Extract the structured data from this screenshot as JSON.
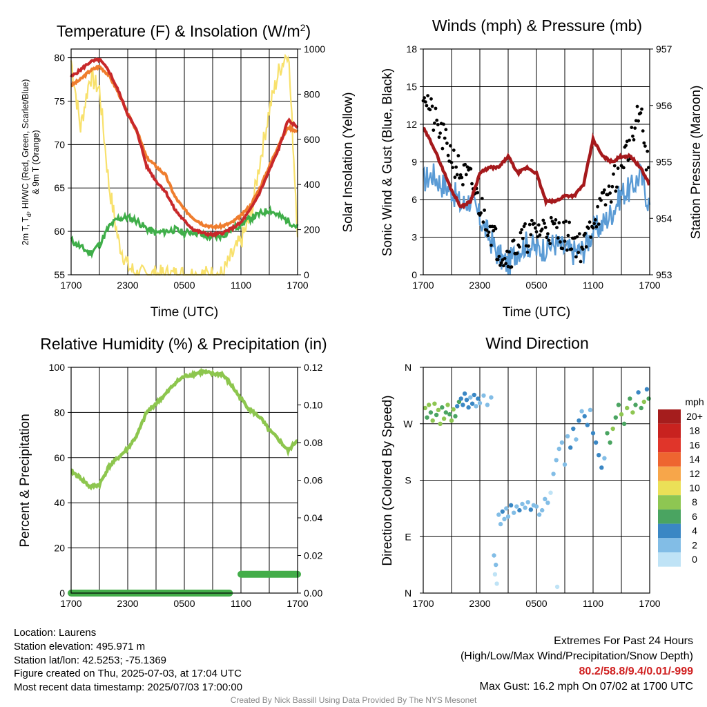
{
  "panels": {
    "temperature": {
      "title_main": "Temperature (F) & Insolation (W/m",
      "title_sup": "2",
      "title_end": ")",
      "ylabel_left": "2m T, T",
      "ylabel_left_sub": "d",
      "ylabel_left_rest": ", HI/WC (Red, Green, Scarlet/Blue)",
      "ylabel_left_line2": "& 9m T (Orange)",
      "ylabel_right": "Solar Insolation (Yellow)",
      "xlabel": "Time (UTC)"
    },
    "winds": {
      "title": "Winds (mph) & Pressure (mb)",
      "ylabel_left": "Sonic Wind & Gust (Blue, Black)",
      "ylabel_right": "Station Pressure (Maroon)",
      "xlabel": "Time (UTC)"
    },
    "humidity": {
      "title": "Relative Humidity (%) & Precipitation (in)",
      "ylabel_left": "Percent & Precipitation"
    },
    "direction": {
      "title": "Wind Direction",
      "ylabel_left": "Direction (Colored By Speed)",
      "legend_unit": "mph",
      "legend_labels": [
        "20+",
        "18",
        "16",
        "14",
        "12",
        "10",
        "8",
        "6",
        "4",
        "2",
        "0"
      ],
      "legend_colors": [
        "#a51d1d",
        "#c8221f",
        "#e0352a",
        "#ee6530",
        "#f7a64a",
        "#ebe057",
        "#8ec652",
        "#4aa461",
        "#3a87c4",
        "#82bde6",
        "#bfe3f6"
      ]
    }
  },
  "chart_data": [
    {
      "type": "line",
      "title": "Temperature (F) & Insolation (W/m2)",
      "xlabel": "Time (UTC)",
      "x_ticks": [
        "1700",
        "2300",
        "0500",
        "1100",
        "1700"
      ],
      "ylim": [
        55,
        81
      ],
      "y_ticks": [
        55,
        60,
        65,
        70,
        75,
        80
      ],
      "y2lim": [
        0,
        1000
      ],
      "y2_ticks": [
        0,
        200,
        400,
        600,
        800,
        1000
      ],
      "x_hours": [
        0,
        1,
        2,
        3,
        4,
        5,
        6,
        7,
        8,
        9,
        10,
        11,
        12,
        13,
        14,
        15,
        16,
        17,
        18,
        19,
        20,
        21,
        22,
        23,
        24
      ],
      "series": [
        {
          "color": "#c8282a",
          "values": [
            77.8,
            78.6,
            79.5,
            79.8,
            78.5,
            76.2,
            73.5,
            71.5,
            67.5,
            65.8,
            64.6,
            62.5,
            61.2,
            60.2,
            59.8,
            59.6,
            59.8,
            60.3,
            61.0,
            62.5,
            64.5,
            67.0,
            69.5,
            72.8,
            72.0
          ]
        },
        {
          "color": "#ef7d2e",
          "values": [
            76.8,
            77.5,
            78.5,
            79.0,
            78.0,
            76.0,
            73.5,
            71.5,
            68.5,
            67.5,
            66.5,
            64.0,
            62.5,
            61.5,
            60.8,
            60.5,
            60.6,
            61.0,
            61.8,
            63.0,
            65.0,
            67.5,
            70.0,
            72.0,
            71.5
          ]
        },
        {
          "color": "#3fae49",
          "values": [
            59.0,
            58.2,
            57.5,
            58.5,
            60.5,
            61.5,
            61.6,
            61.2,
            60.3,
            59.8,
            60.0,
            60.2,
            59.8,
            60.0,
            59.5,
            59.3,
            59.5,
            60.2,
            60.8,
            61.5,
            62.0,
            62.5,
            61.8,
            61.2,
            60.5
          ]
        },
        {
          "color": "#f8e16c",
          "values": [
            950,
            650,
            880,
            820,
            400,
            150,
            40,
            0,
            0,
            0,
            0,
            0,
            0,
            0,
            0,
            0,
            0,
            80,
            150,
            250,
            500,
            730,
            900,
            1000,
            200
          ]
        }
      ]
    },
    {
      "type": "line",
      "title": "Winds (mph) & Pressure (mb)",
      "xlabel": "Time (UTC)",
      "x_ticks": [
        "1700",
        "2300",
        "0500",
        "1100",
        "1700"
      ],
      "ylim": [
        0,
        18
      ],
      "y_ticks": [
        0,
        3,
        6,
        9,
        12,
        15,
        18
      ],
      "y2lim": [
        953,
        957
      ],
      "y2_ticks": [
        953,
        954,
        955,
        956,
        957
      ],
      "x_hours": [
        0,
        1,
        2,
        3,
        4,
        5,
        6,
        7,
        8,
        9,
        10,
        11,
        12,
        13,
        14,
        15,
        16,
        17,
        18,
        19,
        20,
        21,
        22,
        23,
        24
      ],
      "series": [
        {
          "color": "#5a9bd5",
          "values": [
            7.5,
            8.0,
            7.2,
            6.8,
            5.5,
            6.0,
            4.5,
            3.0,
            1.5,
            0.8,
            2.0,
            2.5,
            2.0,
            2.2,
            2.5,
            2.0,
            1.8,
            2.0,
            3.5,
            4.0,
            5.0,
            6.5,
            6.8,
            8.0,
            5.5
          ]
        },
        {
          "color": "#000000",
          "values": [
            15.0,
            12.5,
            11.0,
            9.5,
            8.0,
            7.5,
            5.5,
            4.0,
            2.0,
            1.5,
            2.5,
            3.0,
            3.5,
            3.8,
            3.5,
            3.2,
            2.8,
            2.0,
            4.5,
            5.5,
            7.0,
            9.0,
            10.5,
            13.0,
            7.5
          ]
        },
        {
          "color": "#a5191c",
          "values": [
            955.6,
            955.3,
            954.9,
            954.5,
            954.2,
            954.3,
            954.8,
            954.9,
            954.9,
            955.1,
            954.8,
            954.9,
            954.8,
            954.3,
            954.3,
            954.4,
            954.4,
            954.6,
            955.4,
            955.1,
            955.0,
            955.1,
            955.1,
            954.9,
            954.6
          ]
        }
      ]
    },
    {
      "type": "line",
      "title": "Relative Humidity (%) & Precipitation (in)",
      "ylabel": "Percent & Precipitation",
      "x_ticks": [
        "1700",
        "2300",
        "0500",
        "1100",
        "1700"
      ],
      "ylim": [
        0,
        100
      ],
      "y_ticks": [
        0,
        20,
        40,
        60,
        80,
        100
      ],
      "y2lim": [
        0,
        0.12
      ],
      "y2_ticks": [
        "0.00",
        "0.02",
        "0.04",
        "0.06",
        "0.08",
        "0.10",
        "0.12"
      ],
      "x_hours": [
        0,
        1,
        2,
        3,
        4,
        5,
        6,
        7,
        8,
        9,
        10,
        11,
        12,
        13,
        14,
        15,
        16,
        17,
        18,
        19,
        20,
        21,
        22,
        23,
        24
      ],
      "series": [
        {
          "color": "#8dc64e",
          "values": [
            54,
            51,
            47,
            48,
            56,
            60,
            64,
            70,
            80,
            84,
            88,
            93,
            96,
            97,
            98,
            97,
            97,
            92,
            86,
            81,
            78,
            72,
            68,
            63,
            68
          ]
        },
        {
          "color": "#43ad49",
          "values": [
            0,
            0,
            0,
            0,
            0,
            0,
            0,
            0,
            0,
            0,
            0,
            0,
            0,
            0,
            0,
            0,
            0,
            0,
            0.01,
            0.01,
            0.01,
            0.01,
            0.01,
            0.01,
            0.01
          ]
        }
      ]
    },
    {
      "type": "scatter",
      "title": "Wind Direction",
      "ylabel": "Direction (Colored By Speed)",
      "x_ticks": [
        "1700",
        "2300",
        "0500",
        "1100",
        "1700"
      ],
      "y_ticks": [
        "N",
        "W",
        "S",
        "E",
        "N"
      ],
      "ylim_deg": [
        0,
        360
      ],
      "points": [
        {
          "h": 0.2,
          "d": 295,
          "s": 7
        },
        {
          "h": 0.4,
          "d": 280,
          "s": 6
        },
        {
          "h": 0.6,
          "d": 300,
          "s": 8
        },
        {
          "h": 0.8,
          "d": 288,
          "s": 5
        },
        {
          "h": 1.0,
          "d": 275,
          "s": 7
        },
        {
          "h": 1.2,
          "d": 302,
          "s": 8
        },
        {
          "h": 1.4,
          "d": 284,
          "s": 6
        },
        {
          "h": 1.6,
          "d": 292,
          "s": 7
        },
        {
          "h": 1.8,
          "d": 270,
          "s": 8
        },
        {
          "h": 2.0,
          "d": 296,
          "s": 6
        },
        {
          "h": 2.2,
          "d": 278,
          "s": 7
        },
        {
          "h": 2.4,
          "d": 288,
          "s": 5
        },
        {
          "h": 2.6,
          "d": 300,
          "s": 8
        },
        {
          "h": 2.8,
          "d": 285,
          "s": 6
        },
        {
          "h": 3.0,
          "d": 275,
          "s": 7
        },
        {
          "h": 3.2,
          "d": 293,
          "s": 8
        },
        {
          "h": 3.4,
          "d": 282,
          "s": 6
        },
        {
          "h": 3.6,
          "d": 298,
          "s": 4
        },
        {
          "h": 3.8,
          "d": 305,
          "s": 5
        },
        {
          "h": 4.0,
          "d": 310,
          "s": 4
        },
        {
          "h": 4.2,
          "d": 300,
          "s": 3
        },
        {
          "h": 4.4,
          "d": 318,
          "s": 4
        },
        {
          "h": 4.6,
          "d": 308,
          "s": 3
        },
        {
          "h": 4.8,
          "d": 296,
          "s": 4
        },
        {
          "h": 5.0,
          "d": 312,
          "s": 2
        },
        {
          "h": 5.2,
          "d": 302,
          "s": 4
        },
        {
          "h": 5.4,
          "d": 316,
          "s": 3
        },
        {
          "h": 5.6,
          "d": 298,
          "s": 2
        },
        {
          "h": 5.8,
          "d": 310,
          "s": 3
        },
        {
          "h": 6.0,
          "d": 303,
          "s": 2
        },
        {
          "h": 6.4,
          "d": 315,
          "s": 1
        },
        {
          "h": 6.8,
          "d": 300,
          "s": 2
        },
        {
          "h": 7.2,
          "d": 312,
          "s": 1
        },
        {
          "h": 7.5,
          "d": 60,
          "s": 1
        },
        {
          "h": 7.6,
          "d": 30,
          "s": 0
        },
        {
          "h": 7.7,
          "d": 45,
          "s": 1
        },
        {
          "h": 7.8,
          "d": 15,
          "s": 0
        },
        {
          "h": 8.0,
          "d": 125,
          "s": 2
        },
        {
          "h": 8.2,
          "d": 110,
          "s": 1
        },
        {
          "h": 8.4,
          "d": 130,
          "s": 3
        },
        {
          "h": 8.6,
          "d": 118,
          "s": 2
        },
        {
          "h": 8.8,
          "d": 135,
          "s": 2
        },
        {
          "h": 9.0,
          "d": 122,
          "s": 1
        },
        {
          "h": 9.3,
          "d": 140,
          "s": 3
        },
        {
          "h": 9.6,
          "d": 128,
          "s": 2
        },
        {
          "h": 9.9,
          "d": 138,
          "s": 2
        },
        {
          "h": 10.2,
          "d": 132,
          "s": 3
        },
        {
          "h": 10.5,
          "d": 142,
          "s": 2
        },
        {
          "h": 10.8,
          "d": 136,
          "s": 1
        },
        {
          "h": 11.1,
          "d": 145,
          "s": 2
        },
        {
          "h": 11.4,
          "d": 133,
          "s": 3
        },
        {
          "h": 11.7,
          "d": 140,
          "s": 1
        },
        {
          "h": 12.0,
          "d": 138,
          "s": 2
        },
        {
          "h": 12.3,
          "d": 125,
          "s": 1
        },
        {
          "h": 12.6,
          "d": 132,
          "s": 2
        },
        {
          "h": 12.9,
          "d": 150,
          "s": 1
        },
        {
          "h": 13.2,
          "d": 144,
          "s": 1
        },
        {
          "h": 13.5,
          "d": 160,
          "s": 0
        },
        {
          "h": 13.8,
          "d": 190,
          "s": 1
        },
        {
          "h": 14.1,
          "d": 212,
          "s": 2
        },
        {
          "h": 14.2,
          "d": 10,
          "s": 0
        },
        {
          "h": 14.4,
          "d": 230,
          "s": 1
        },
        {
          "h": 14.7,
          "d": 240,
          "s": 2
        },
        {
          "h": 15.0,
          "d": 205,
          "s": 1
        },
        {
          "h": 15.3,
          "d": 250,
          "s": 2
        },
        {
          "h": 15.6,
          "d": 232,
          "s": 3
        },
        {
          "h": 15.9,
          "d": 262,
          "s": 4
        },
        {
          "h": 16.2,
          "d": 245,
          "s": 2
        },
        {
          "h": 16.5,
          "d": 275,
          "s": 3
        },
        {
          "h": 16.8,
          "d": 290,
          "s": 2
        },
        {
          "h": 17.1,
          "d": 282,
          "s": 4
        },
        {
          "h": 17.4,
          "d": 268,
          "s": 3
        },
        {
          "h": 17.7,
          "d": 292,
          "s": 2
        },
        {
          "h": 18.0,
          "d": 255,
          "s": 3
        },
        {
          "h": 18.3,
          "d": 240,
          "s": 4
        },
        {
          "h": 18.6,
          "d": 220,
          "s": 3
        },
        {
          "h": 18.9,
          "d": 200,
          "s": 4
        },
        {
          "h": 19.2,
          "d": 215,
          "s": 2
        },
        {
          "h": 19.5,
          "d": 255,
          "s": 5
        },
        {
          "h": 19.8,
          "d": 240,
          "s": 6
        },
        {
          "h": 20.1,
          "d": 262,
          "s": 7
        },
        {
          "h": 20.4,
          "d": 280,
          "s": 6
        },
        {
          "h": 20.7,
          "d": 300,
          "s": 5
        },
        {
          "h": 21.0,
          "d": 285,
          "s": 7
        },
        {
          "h": 21.3,
          "d": 270,
          "s": 6
        },
        {
          "h": 21.6,
          "d": 295,
          "s": 8
        },
        {
          "h": 21.9,
          "d": 310,
          "s": 6
        },
        {
          "h": 22.2,
          "d": 288,
          "s": 7
        },
        {
          "h": 22.5,
          "d": 300,
          "s": 5
        },
        {
          "h": 22.8,
          "d": 320,
          "s": 4
        },
        {
          "h": 23.1,
          "d": 295,
          "s": 6
        },
        {
          "h": 23.4,
          "d": 305,
          "s": 7
        },
        {
          "h": 23.7,
          "d": 325,
          "s": 4
        },
        {
          "h": 23.9,
          "d": 310,
          "s": 5
        }
      ]
    }
  ],
  "info": {
    "location": "Location: Laurens",
    "elevation": "Station elevation: 495.971 m",
    "latlon": "Station lat/lon: 42.5253; -75.1369",
    "created": "Figure created on Thu, 2025-07-03, at 17:04 UTC",
    "recent": "Most recent data timestamp: 2025/07/03 17:00:00"
  },
  "extremes": {
    "heading": "Extremes For Past 24 Hours",
    "subheading": "(High/Low/Max Wind/Precipitation/Snow Depth)",
    "values": "80.2/58.8/9.4/0.01/-999",
    "gust": "Max Gust: 16.2 mph On 07/02 at 1700 UTC"
  },
  "credit": "Created By Nick Bassill Using Data Provided By The NYS Mesonet"
}
